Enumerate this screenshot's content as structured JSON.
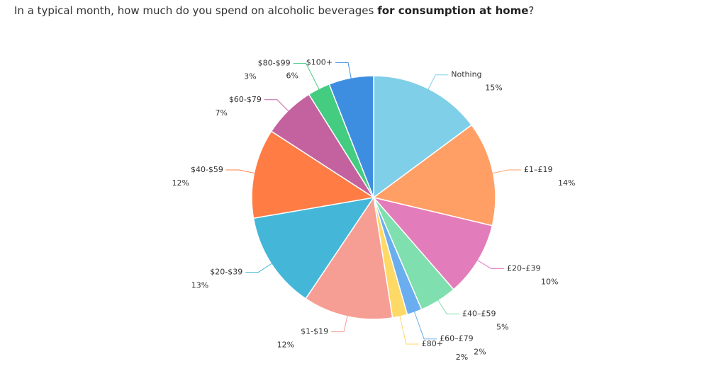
{
  "chart_data": {
    "type": "pie",
    "title_parts": [
      "In a typical month, how much do you spend on alcoholic beverages",
      "for consumption at home",
      "?"
    ],
    "categories": [
      "Nothing",
      "£1–£19",
      "£20–£39",
      "£40–£59",
      "£60–£79",
      "£80+",
      "$1-$19",
      "$20-$39",
      "$40-$59",
      "$60-$79",
      "$80-$99",
      "$100+"
    ],
    "values": [
      15,
      14,
      10,
      5,
      2,
      2,
      12,
      13,
      12,
      7,
      3,
      6
    ],
    "value_labels": [
      "15%",
      "14%",
      "10%",
      "5%",
      "2%",
      "2%",
      "12%",
      "13%",
      "12%",
      "7%",
      "3%",
      "6%"
    ],
    "colors": [
      "#7fcfe8",
      "#ff9f66",
      "#e37cba",
      "#80dfae",
      "#6aaef0",
      "#ffd966",
      "#f79e94",
      "#44b7d8",
      "#ff7c45",
      "#c462a0",
      "#44cc80",
      "#3d8ee0"
    ]
  }
}
